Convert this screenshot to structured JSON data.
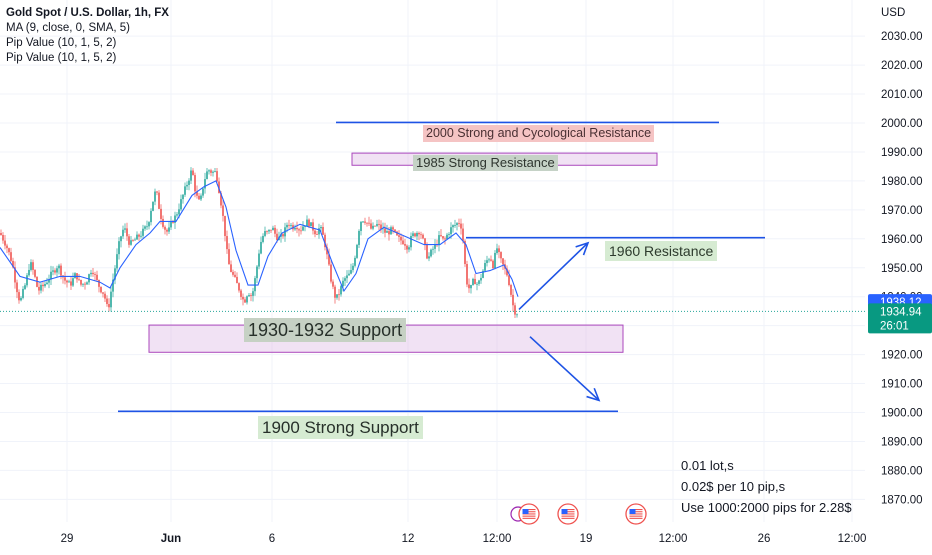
{
  "legend": {
    "title": "Gold Spot / U.S. Dollar, 1h, FX",
    "lines": [
      "MA (9, close, 0, SMA, 5)",
      "Pip Value (10, 1, 5, 2)",
      "Pip Value (10, 1, 5, 2)"
    ]
  },
  "currency_label": "USD",
  "price_tags": {
    "ma": {
      "value": "1938.12",
      "color": "#2962ff"
    },
    "last": {
      "value": "1934.94",
      "timer": "26:01",
      "color": "#089981"
    }
  },
  "annotations": {
    "res_2000": "2000 Strong and Cycological Resistance",
    "res_1985": "1985 Strong Resistance",
    "res_1960": "1960 Resistance",
    "sup_1930": "1930-1932 Support",
    "sup_1900": "1900 Strong Support"
  },
  "notes": [
    "0.01 lot,s",
    "0.02$ per 10 pip,s",
    "Use 1000:2000 pips for 2.28$"
  ],
  "colors": {
    "up": "#26a69a",
    "down": "#ef5350",
    "ma": "#2962ff",
    "line": "#1e53e5"
  },
  "icons": [
    "flag-us-icon",
    "flag-us-icon",
    "flag-us-icon"
  ],
  "chart_data": {
    "type": "candlestick",
    "symbol": "Gold Spot / U.S. Dollar",
    "timeframe": "1h",
    "y_axis": {
      "ticks": [
        1870,
        1880,
        1890,
        1900,
        1910,
        1920,
        1930,
        1940,
        1950,
        1960,
        1970,
        1980,
        1990,
        2000,
        2010,
        2020,
        2030
      ],
      "tick_labels": [
        "1870.00",
        "1880.00",
        "1890.00",
        "1900.00",
        "1910.00",
        "1920.00",
        "1930.00",
        "1940.00",
        "1950.00",
        "1960.00",
        "1970.00",
        "1980.00",
        "1990.00",
        "2000.00",
        "2010.00",
        "2020.00",
        "2030.00"
      ],
      "range": [
        1863,
        2038
      ]
    },
    "x_axis": {
      "tick_labels": [
        "29",
        "Jun",
        "6",
        "12",
        "12:00",
        "19",
        "12:00",
        "26",
        "12:00"
      ]
    },
    "price_series": [
      [
        0,
        1962
      ],
      [
        6,
        1958
      ],
      [
        12,
        1952
      ],
      [
        16,
        1944
      ],
      [
        20,
        1938
      ],
      [
        26,
        1945
      ],
      [
        30,
        1952
      ],
      [
        34,
        1948
      ],
      [
        38,
        1942
      ],
      [
        44,
        1944
      ],
      [
        50,
        1947
      ],
      [
        58,
        1951
      ],
      [
        64,
        1946
      ],
      [
        70,
        1944
      ],
      [
        76,
        1948
      ],
      [
        80,
        1944
      ],
      [
        86,
        1945
      ],
      [
        92,
        1950
      ],
      [
        96,
        1946
      ],
      [
        100,
        1943
      ],
      [
        104,
        1941
      ],
      [
        108,
        1935
      ],
      [
        112,
        1944
      ],
      [
        116,
        1952
      ],
      [
        120,
        1960
      ],
      [
        124,
        1964
      ],
      [
        130,
        1958
      ],
      [
        136,
        1960
      ],
      [
        142,
        1962
      ],
      [
        148,
        1965
      ],
      [
        152,
        1972
      ],
      [
        156,
        1977
      ],
      [
        160,
        1969
      ],
      [
        164,
        1964
      ],
      [
        168,
        1962
      ],
      [
        172,
        1966
      ],
      [
        176,
        1968
      ],
      [
        180,
        1972
      ],
      [
        184,
        1976
      ],
      [
        188,
        1980
      ],
      [
        192,
        1984
      ],
      [
        196,
        1975
      ],
      [
        200,
        1972
      ],
      [
        204,
        1980
      ],
      [
        208,
        1984
      ],
      [
        212,
        1983
      ],
      [
        216,
        1983
      ],
      [
        220,
        1975
      ],
      [
        224,
        1965
      ],
      [
        228,
        1952
      ],
      [
        232,
        1948
      ],
      [
        236,
        1945
      ],
      [
        240,
        1942
      ],
      [
        244,
        1938
      ],
      [
        248,
        1942
      ],
      [
        252,
        1940
      ],
      [
        256,
        1948
      ],
      [
        260,
        1958
      ],
      [
        264,
        1962
      ],
      [
        268,
        1962
      ],
      [
        272,
        1964
      ],
      [
        276,
        1961
      ],
      [
        280,
        1960
      ],
      [
        284,
        1962
      ],
      [
        288,
        1966
      ],
      [
        292,
        1964
      ],
      [
        296,
        1965
      ],
      [
        300,
        1963
      ],
      [
        304,
        1965
      ],
      [
        308,
        1966
      ],
      [
        312,
        1964
      ],
      [
        316,
        1962
      ],
      [
        320,
        1964
      ],
      [
        324,
        1960
      ],
      [
        328,
        1952
      ],
      [
        332,
        1944
      ],
      [
        336,
        1939
      ],
      [
        340,
        1942
      ],
      [
        344,
        1946
      ],
      [
        348,
        1947
      ],
      [
        352,
        1949
      ],
      [
        356,
        1956
      ],
      [
        360,
        1966
      ],
      [
        364,
        1967
      ],
      [
        368,
        1965
      ],
      [
        372,
        1963
      ],
      [
        376,
        1965
      ],
      [
        380,
        1964
      ],
      [
        386,
        1962
      ],
      [
        392,
        1963
      ],
      [
        398,
        1960
      ],
      [
        404,
        1959
      ],
      [
        408,
        1957
      ],
      [
        412,
        1961
      ],
      [
        416,
        1962
      ],
      [
        420,
        1963
      ],
      [
        424,
        1958
      ],
      [
        428,
        1953
      ],
      [
        432,
        1956
      ],
      [
        436,
        1958
      ],
      [
        440,
        1961
      ],
      [
        444,
        1959
      ],
      [
        448,
        1962
      ],
      [
        452,
        1964
      ],
      [
        456,
        1965
      ],
      [
        460,
        1966
      ],
      [
        462,
        1963
      ],
      [
        464,
        1956
      ],
      [
        466,
        1946
      ],
      [
        470,
        1942
      ],
      [
        474,
        1946
      ],
      [
        478,
        1944
      ],
      [
        482,
        1948
      ],
      [
        486,
        1952
      ],
      [
        490,
        1954
      ],
      [
        494,
        1950
      ],
      [
        496,
        1958
      ],
      [
        500,
        1953
      ],
      [
        504,
        1950
      ],
      [
        508,
        1947
      ],
      [
        510,
        1943
      ],
      [
        513,
        1937
      ],
      [
        516,
        1934
      ],
      [
        518,
        1935
      ]
    ],
    "moving_average": [
      [
        0,
        1957
      ],
      [
        20,
        1947
      ],
      [
        40,
        1945
      ],
      [
        60,
        1947
      ],
      [
        80,
        1947
      ],
      [
        100,
        1945
      ],
      [
        110,
        1943
      ],
      [
        120,
        1950
      ],
      [
        136,
        1958
      ],
      [
        150,
        1962
      ],
      [
        160,
        1966
      ],
      [
        176,
        1966
      ],
      [
        192,
        1975
      ],
      [
        204,
        1978
      ],
      [
        216,
        1980
      ],
      [
        226,
        1971
      ],
      [
        236,
        1956
      ],
      [
        248,
        1944
      ],
      [
        258,
        1944
      ],
      [
        268,
        1954
      ],
      [
        282,
        1962
      ],
      [
        300,
        1965
      ],
      [
        320,
        1963
      ],
      [
        332,
        1952
      ],
      [
        344,
        1942
      ],
      [
        356,
        1948
      ],
      [
        368,
        1960
      ],
      [
        384,
        1964
      ],
      [
        404,
        1961
      ],
      [
        424,
        1958
      ],
      [
        440,
        1958
      ],
      [
        456,
        1962
      ],
      [
        466,
        1958
      ],
      [
        476,
        1948
      ],
      [
        490,
        1949
      ],
      [
        504,
        1951
      ],
      [
        512,
        1946
      ],
      [
        518,
        1940
      ]
    ],
    "drawings": {
      "horizontal_lines": [
        {
          "x1": 336,
          "x2": 719,
          "y": 2000.2
        },
        {
          "x1": 466,
          "x2": 765,
          "y": 1960.4
        },
        {
          "x1": 118,
          "x2": 618,
          "y": 1900.4
        }
      ],
      "zones": [
        {
          "x1": 352,
          "x2": 657,
          "top": 1989.6,
          "bottom": 1985.4,
          "label": "1985 Strong Resistance"
        },
        {
          "x1": 149,
          "x2": 623,
          "top": 1930.2,
          "bottom": 1920.8,
          "label": "1930-1932 Support"
        }
      ],
      "arrows": [
        {
          "from": [
            519,
            1935.6
          ],
          "to": [
            588,
            1958.6
          ]
        },
        {
          "from": [
            530,
            1926.2
          ],
          "to": [
            599,
            1904.2
          ]
        }
      ]
    },
    "last_price": 1934.94,
    "ma_last": 1938.12
  }
}
